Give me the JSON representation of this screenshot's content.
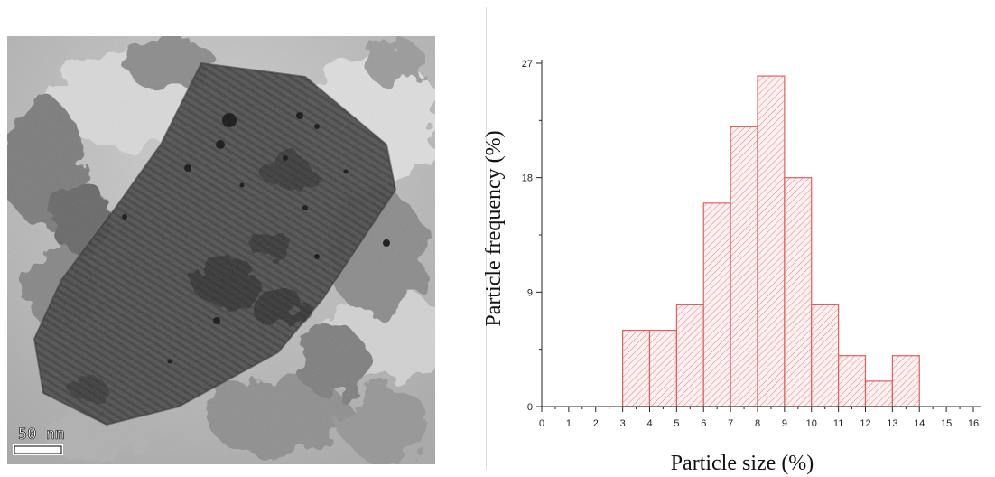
{
  "micrograph": {
    "scale_bar_label": "50 nm"
  },
  "chart_data": {
    "type": "bar",
    "xlabel": "Particle size (%)",
    "ylabel": "Particle frequency (%)",
    "x_ticks": [
      0,
      1,
      2,
      3,
      4,
      5,
      6,
      7,
      8,
      9,
      10,
      11,
      12,
      13,
      14,
      15,
      16
    ],
    "y_ticks": [
      0,
      9,
      18,
      27
    ],
    "xlim": [
      0,
      16
    ],
    "ylim": [
      0,
      27
    ],
    "bins": [
      {
        "start": 3,
        "end": 4,
        "value": 6
      },
      {
        "start": 4,
        "end": 5,
        "value": 6
      },
      {
        "start": 5,
        "end": 6,
        "value": 8
      },
      {
        "start": 6,
        "end": 7,
        "value": 16
      },
      {
        "start": 7,
        "end": 8,
        "value": 22
      },
      {
        "start": 8,
        "end": 9,
        "value": 26
      },
      {
        "start": 9,
        "end": 10,
        "value": 18
      },
      {
        "start": 10,
        "end": 11,
        "value": 8
      },
      {
        "start": 11,
        "end": 12,
        "value": 4
      },
      {
        "start": 12,
        "end": 13,
        "value": 2
      },
      {
        "start": 13,
        "end": 14,
        "value": 4
      }
    ],
    "bar_color": "#e06060",
    "bar_fill": "#fbe8e8",
    "grid": false
  }
}
